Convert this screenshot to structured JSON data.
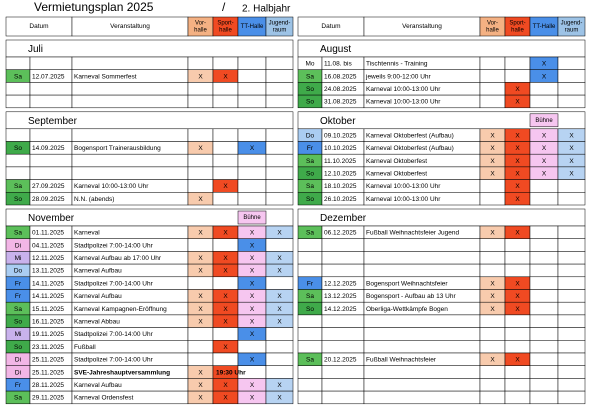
{
  "title": {
    "main": "Vermietungsplan 2025",
    "separator": "/",
    "sub": "2. Halbjahr"
  },
  "header_colors": [
    "#f4b183",
    "#f04a22",
    "#4a8fe8",
    "#9dc3e6"
  ],
  "halves": [
    {
      "header": {
        "date": "Datum",
        "event": "Veranstaltung",
        "halls": [
          [
            "Vor-",
            "halle"
          ],
          [
            "Sport-",
            "halle"
          ],
          [
            "TT-Halle"
          ],
          [
            "Jugend-",
            "raum"
          ]
        ]
      },
      "sections": [
        {
          "month": "Juli",
          "rows": [
            null,
            {
              "day": "Sa",
              "day_color": "#5cbf5a",
              "date": "12.07.2025",
              "event": "Karneval Sommerfest",
              "cells": [
                {
                  "text": "X",
                  "color": "#f8cbad"
                },
                {
                  "text": "X",
                  "color": "#f04a22"
                },
                null,
                null
              ]
            },
            null,
            null
          ]
        },
        {
          "month": "September",
          "rows": [
            null,
            {
              "day": "So",
              "day_color": "#3faa4a",
              "date": "14.09.2025",
              "event": "Bogensport Trainerausbildung",
              "cells": [
                {
                  "text": "X",
                  "color": "#f8cbad"
                },
                null,
                {
                  "text": "X",
                  "color": "#4a8fe8"
                },
                null
              ]
            },
            null,
            null,
            {
              "day": "Sa",
              "day_color": "#5cbf5a",
              "date": "27.09.2025",
              "event": "Karneval 10:00-13:00 Uhr",
              "cells": [
                null,
                {
                  "text": "X",
                  "color": "#f04a22"
                },
                null,
                null
              ]
            },
            {
              "day": "So",
              "day_color": "#3faa4a",
              "date": "28.09.2025",
              "event": "N.N.  (abends)",
              "cells": [
                {
                  "text": "X",
                  "color": "#f8cbad"
                },
                null,
                null,
                null
              ]
            }
          ]
        },
        {
          "month": "November",
          "stage": "Bühne",
          "rows": [
            {
              "day": "Sa",
              "day_color": "#5cbf5a",
              "date": "01.11.2025",
              "event": "Karneval",
              "cells": [
                {
                  "text": "X",
                  "color": "#f8cbad"
                },
                {
                  "text": "X",
                  "color": "#f04a22"
                },
                {
                  "text": "X",
                  "color": "#f6c6f0"
                },
                {
                  "text": "X",
                  "color": "#b7d3f2"
                }
              ]
            },
            {
              "day": "Di",
              "day_color": "#f2b6e6",
              "date": "04.11.2025",
              "event": "Stadtpolizei  7:00-14:00 Uhr",
              "cells": [
                null,
                null,
                {
                  "text": "X",
                  "color": "#4a8fe8"
                },
                null
              ]
            },
            {
              "day": "Mi",
              "day_color": "#c9b2ec",
              "date": "12.11.2025",
              "event": "Karneval  Aufbau ab 17:00 Uhr",
              "cells": [
                {
                  "text": "X",
                  "color": "#f8cbad"
                },
                {
                  "text": "X",
                  "color": "#f04a22"
                },
                {
                  "text": "X",
                  "color": "#f6c6f0"
                },
                {
                  "text": "X",
                  "color": "#b7d3f2"
                }
              ]
            },
            {
              "day": "Do",
              "day_color": "#aacdf2",
              "date": "13.11.2025",
              "event": "Karneval  Aufbau",
              "cells": [
                {
                  "text": "X",
                  "color": "#f8cbad"
                },
                {
                  "text": "X",
                  "color": "#f04a22"
                },
                {
                  "text": "X",
                  "color": "#f6c6f0"
                },
                {
                  "text": "X",
                  "color": "#b7d3f2"
                }
              ]
            },
            {
              "day": "Fr",
              "day_color": "#4a8fe8",
              "date": "14.11.2025",
              "event": "Stadtpolizei  7:00-14:00 Uhr",
              "cells": [
                null,
                null,
                {
                  "text": "X",
                  "color": "#4a8fe8"
                },
                null
              ]
            },
            {
              "day": "Fr",
              "day_color": "#4a8fe8",
              "date": "14.11.2025",
              "event": "Karneval  Aufbau",
              "cells": [
                {
                  "text": "X",
                  "color": "#f8cbad"
                },
                {
                  "text": "X",
                  "color": "#f04a22"
                },
                {
                  "text": "X",
                  "color": "#f6c6f0"
                },
                {
                  "text": "X",
                  "color": "#b7d3f2"
                }
              ]
            },
            {
              "day": "Sa",
              "day_color": "#5cbf5a",
              "date": "15.11.2025",
              "event": "Karneval Kampagnen-Eröffnung",
              "cells": [
                {
                  "text": "X",
                  "color": "#f8cbad"
                },
                {
                  "text": "X",
                  "color": "#f04a22"
                },
                {
                  "text": "X",
                  "color": "#f6c6f0"
                },
                {
                  "text": "X",
                  "color": "#b7d3f2"
                }
              ]
            },
            {
              "day": "So",
              "day_color": "#3faa4a",
              "date": "16.11.2025",
              "event": "Karneval  Abbau",
              "cells": [
                {
                  "text": "X",
                  "color": "#f8cbad"
                },
                {
                  "text": "X",
                  "color": "#f04a22"
                },
                {
                  "text": "X",
                  "color": "#f6c6f0"
                },
                {
                  "text": "X",
                  "color": "#b7d3f2"
                }
              ]
            },
            {
              "day": "Mi",
              "day_color": "#c9b2ec",
              "date": "19.11.2025",
              "event": "Stadtpolizei  7:00-14:00 Uhr",
              "cells": [
                null,
                null,
                {
                  "text": "X",
                  "color": "#4a8fe8"
                },
                null
              ]
            },
            {
              "day": "So",
              "day_color": "#3faa4a",
              "date": "23.11.2025",
              "event": "Fußball",
              "cells": [
                null,
                {
                  "text": "X",
                  "color": "#f04a22"
                },
                null,
                null
              ]
            },
            {
              "day": "Di",
              "day_color": "#f2b6e6",
              "date": "25.11.2025",
              "event": "Stadtpolizei  7:00-14:00 Uhr",
              "cells": [
                null,
                null,
                {
                  "text": "X",
                  "color": "#4a8fe8"
                },
                null
              ]
            },
            {
              "day": "Di",
              "day_color": "#f2b6e6",
              "date": "25.11.2025",
              "event": "SVE-Jahreshauptversammlung",
              "bold": true,
              "cells": [
                {
                  "text": "X",
                  "color": "#f8cbad"
                },
                {
                  "text": "19:30 Uhr",
                  "color": "#f04a22",
                  "bold": true
                },
                null,
                null
              ]
            },
            {
              "day": "Fr",
              "day_color": "#4a8fe8",
              "date": "28.11.2025",
              "event": "Karneval  Aufbau",
              "cells": [
                {
                  "text": "X",
                  "color": "#f8cbad"
                },
                {
                  "text": "X",
                  "color": "#f04a22"
                },
                {
                  "text": "X",
                  "color": "#f6c6f0"
                },
                {
                  "text": "X",
                  "color": "#b7d3f2"
                }
              ]
            },
            {
              "day": "Sa",
              "day_color": "#5cbf5a",
              "date": "29.11.2025",
              "event": "Karneval Ordensfest",
              "cells": [
                {
                  "text": "X",
                  "color": "#f8cbad"
                },
                {
                  "text": "X",
                  "color": "#f04a22"
                },
                {
                  "text": "X",
                  "color": "#f6c6f0"
                },
                {
                  "text": "X",
                  "color": "#b7d3f2"
                }
              ]
            }
          ]
        }
      ]
    },
    {
      "header": {
        "date": "Datum",
        "event": "Veranstaltung",
        "halls": [
          [
            "Vor-",
            "halle"
          ],
          [
            "Sport-",
            "halle"
          ],
          [
            "TT-Halle"
          ],
          [
            "Jugend-",
            "raum"
          ]
        ]
      },
      "sections": [
        {
          "month": "August",
          "rows": [
            {
              "day": "Mo",
              "date": "11.08. bis",
              "event": "Tischtennis - Training",
              "cells": [
                null,
                null,
                {
                  "text": "X",
                  "color": "#4a8fe8"
                },
                null
              ]
            },
            {
              "day": "Sa",
              "day_color": "#5cbf5a",
              "date": "16.08.2025",
              "event": "jeweils 9:00-12:00 Uhr",
              "cells": [
                null,
                null,
                {
                  "text": "X",
                  "color": "#4a8fe8"
                },
                null
              ]
            },
            {
              "day": "So",
              "day_color": "#3faa4a",
              "date": "24.08.2025",
              "event": "Karneval 10:00-13:00 Uhr",
              "cells": [
                null,
                {
                  "text": "X",
                  "color": "#f04a22"
                },
                null,
                null
              ]
            },
            {
              "day": "So",
              "day_color": "#3faa4a",
              "date": "31.08.2025",
              "event": "Karneval 10:00-13:00 Uhr",
              "cells": [
                null,
                {
                  "text": "X",
                  "color": "#f04a22"
                },
                null,
                null
              ]
            }
          ]
        },
        {
          "month": "Oktober",
          "stage": "Bühne",
          "rows": [
            {
              "day": "Do",
              "day_color": "#aacdf2",
              "date": "09.10.2025",
              "event": "Karneval Oktoberfest (Aufbau)",
              "cells": [
                {
                  "text": "X",
                  "color": "#f8cbad"
                },
                {
                  "text": "X",
                  "color": "#f04a22"
                },
                {
                  "text": "X",
                  "color": "#f6c6f0"
                },
                {
                  "text": "X",
                  "color": "#b7d3f2"
                }
              ]
            },
            {
              "day": "Fr",
              "day_color": "#4a8fe8",
              "date": "10.10.2025",
              "event": "Karneval Oktoberfest (Aufbau)",
              "cells": [
                {
                  "text": "X",
                  "color": "#f8cbad"
                },
                {
                  "text": "X",
                  "color": "#f04a22"
                },
                {
                  "text": "X",
                  "color": "#f6c6f0"
                },
                {
                  "text": "X",
                  "color": "#b7d3f2"
                }
              ]
            },
            {
              "day": "Sa",
              "day_color": "#5cbf5a",
              "date": "11.10.2025",
              "event": "Karneval Oktoberfest",
              "cells": [
                {
                  "text": "X",
                  "color": "#f8cbad"
                },
                {
                  "text": "X",
                  "color": "#f04a22"
                },
                {
                  "text": "X",
                  "color": "#f6c6f0"
                },
                {
                  "text": "X",
                  "color": "#b7d3f2"
                }
              ]
            },
            {
              "day": "So",
              "day_color": "#3faa4a",
              "date": "12.10.2025",
              "event": "Karneval Oktoberfest",
              "cells": [
                {
                  "text": "X",
                  "color": "#f8cbad"
                },
                {
                  "text": "X",
                  "color": "#f04a22"
                },
                {
                  "text": "X",
                  "color": "#f6c6f0"
                },
                {
                  "text": "X",
                  "color": "#b7d3f2"
                }
              ]
            },
            {
              "day": "Sa",
              "day_color": "#5cbf5a",
              "date": "18.10.2025",
              "event": "Karneval 10:00-13:00 Uhr",
              "cells": [
                null,
                {
                  "text": "X",
                  "color": "#f04a22"
                },
                null,
                null
              ]
            },
            {
              "day": "So",
              "day_color": "#3faa4a",
              "date": "26.10.2025",
              "event": "Karneval 10:00-13:00 Uhr",
              "cells": [
                null,
                {
                  "text": "X",
                  "color": "#f04a22"
                },
                null,
                null
              ]
            }
          ]
        },
        {
          "month": "Dezember",
          "rows": [
            {
              "day": "Sa",
              "day_color": "#5cbf5a",
              "date": "06.12.2025",
              "event": "Fußball Weihnachtsfeier Jugend",
              "cells": [
                {
                  "text": "X",
                  "color": "#f8cbad"
                },
                {
                  "text": "X",
                  "color": "#f04a22"
                },
                null,
                null
              ]
            },
            null,
            null,
            null,
            {
              "day": "Fr",
              "day_color": "#4a8fe8",
              "date": "12.12.2025",
              "event": "Bogensport  Weihnachtsfeier",
              "cells": [
                {
                  "text": "X",
                  "color": "#f8cbad"
                },
                {
                  "text": "X",
                  "color": "#f04a22"
                },
                null,
                null
              ]
            },
            {
              "day": "Sa",
              "day_color": "#5cbf5a",
              "date": "13.12.2025",
              "event": "Bogensport - Aufbau ab 13 Uhr",
              "cells": [
                {
                  "text": "X",
                  "color": "#f8cbad"
                },
                {
                  "text": "X",
                  "color": "#f04a22"
                },
                null,
                null
              ]
            },
            {
              "day": "So",
              "day_color": "#3faa4a",
              "date": "14.12.2025",
              "event": "Oberliga-Wettkämpfe Bogen",
              "cells": [
                {
                  "text": "X",
                  "color": "#f8cbad"
                },
                {
                  "text": "X",
                  "color": "#f04a22"
                },
                null,
                null
              ]
            },
            null,
            null,
            null,
            {
              "day": "Sa",
              "day_color": "#5cbf5a",
              "date": "20.12.2025",
              "event": "Fußball Weihnachtsfeier",
              "cells": [
                {
                  "text": "X",
                  "color": "#f8cbad"
                },
                {
                  "text": "X",
                  "color": "#f04a22"
                },
                null,
                null
              ]
            },
            null,
            null,
            null
          ]
        }
      ]
    }
  ]
}
